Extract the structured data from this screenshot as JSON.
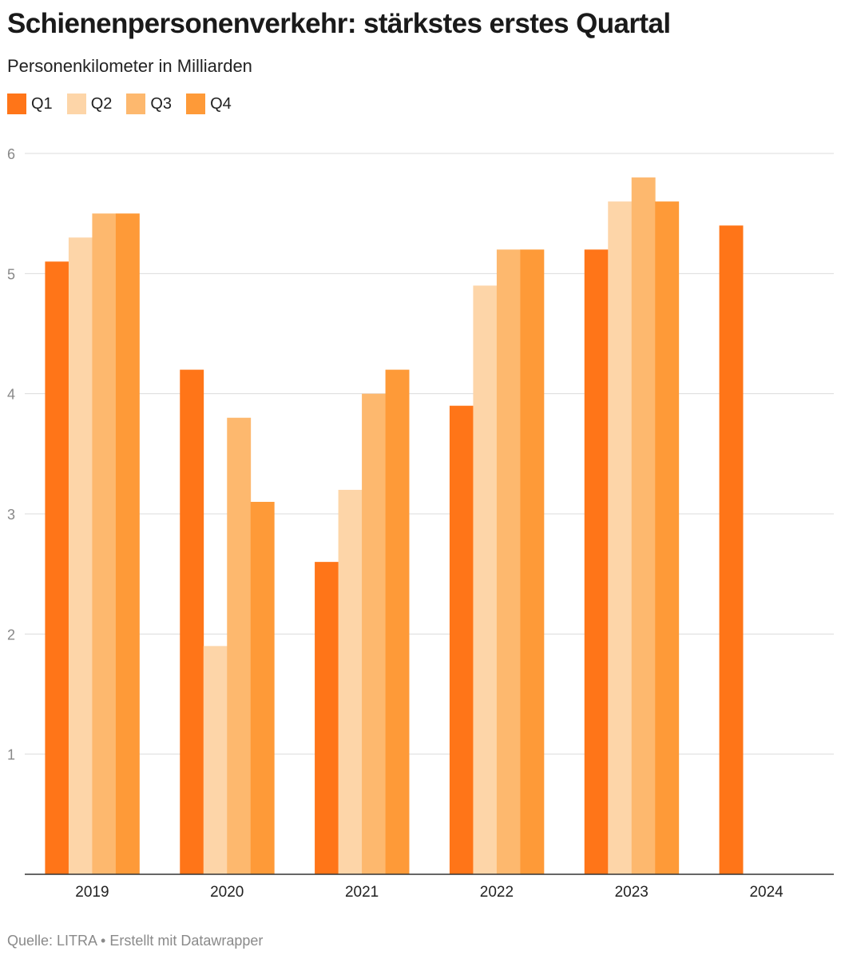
{
  "header": {
    "title": "Schienenpersonenverkehr: stärkstes erstes Quartal",
    "subtitle": "Personenkilometer in Milliarden"
  },
  "legend": [
    {
      "label": "Q1",
      "color": "#ff7518"
    },
    {
      "label": "Q2",
      "color": "#fdd5a8"
    },
    {
      "label": "Q3",
      "color": "#fdb86e"
    },
    {
      "label": "Q4",
      "color": "#fe9a38"
    }
  ],
  "chart_data": {
    "type": "bar",
    "categories": [
      "2019",
      "2020",
      "2021",
      "2022",
      "2023",
      "2024"
    ],
    "series": [
      {
        "name": "Q1",
        "values": [
          5.1,
          4.2,
          2.6,
          3.9,
          5.2,
          5.4
        ]
      },
      {
        "name": "Q2",
        "values": [
          5.3,
          1.9,
          3.2,
          4.9,
          5.6,
          null
        ]
      },
      {
        "name": "Q3",
        "values": [
          5.5,
          3.8,
          4.0,
          5.2,
          5.8,
          null
        ]
      },
      {
        "name": "Q4",
        "values": [
          5.5,
          3.1,
          4.2,
          5.2,
          5.6,
          null
        ]
      }
    ],
    "y_ticks": [
      "1",
      "2",
      "3",
      "4",
      "5",
      "6"
    ],
    "ylim": [
      0,
      6
    ],
    "grid": true,
    "legend_position": "top-left"
  },
  "footer": {
    "source": "Quelle: LITRA • Erstellt mit Datawrapper"
  }
}
